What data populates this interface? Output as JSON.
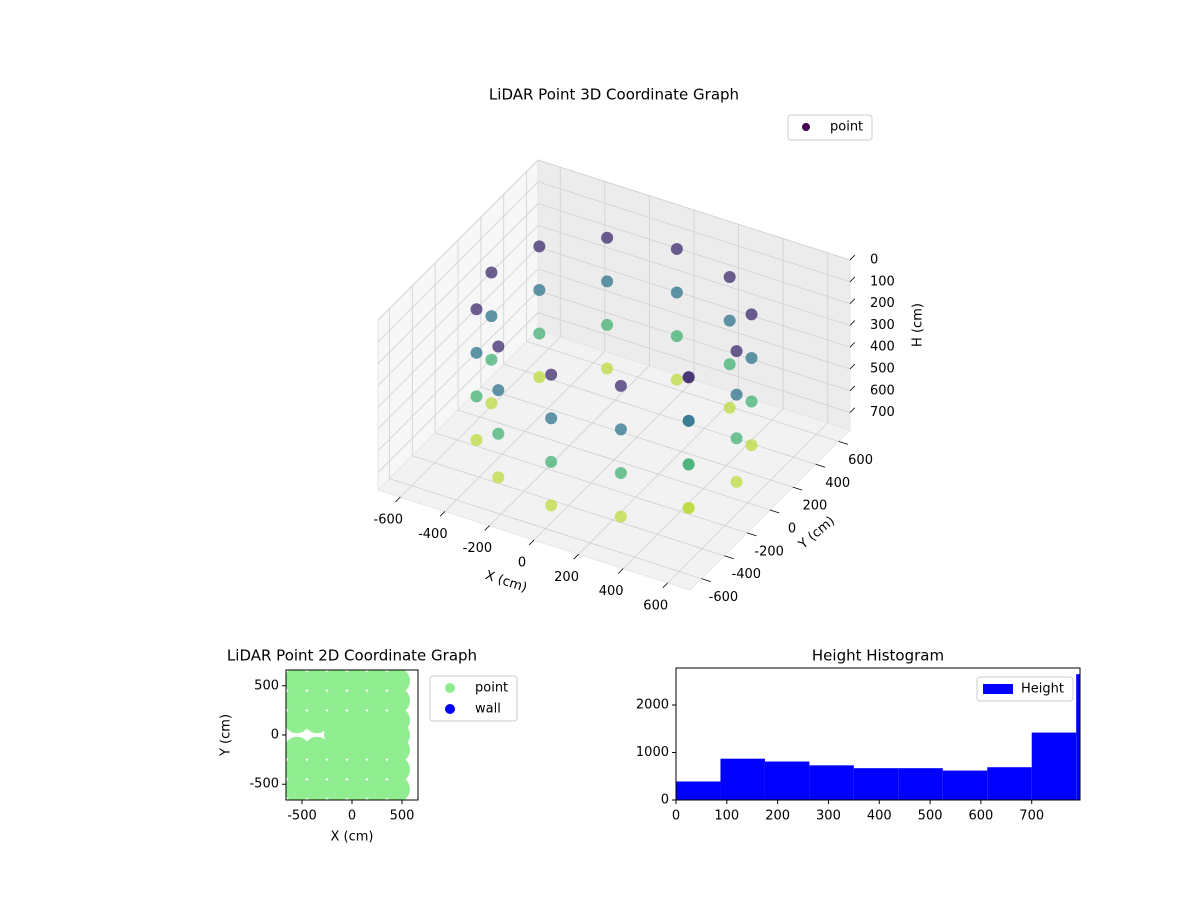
{
  "chart_data": [
    {
      "type": "scatter3d",
      "title": "LiDAR Point 3D Coordinate Graph",
      "xlabel": "X (cm)",
      "ylabel": "Y (cm)",
      "zlabel": "H (cm)",
      "series": [
        {
          "name": "point",
          "colormap": "viridis",
          "x": [
            -275,
            0,
            275,
            -476,
            476,
            -550,
            -275,
            0,
            275,
            -476,
            476,
            -550,
            -275,
            0,
            275,
            -476,
            476,
            -550,
            -275,
            0,
            275,
            -476,
            476,
            -550,
            550,
            476,
            -476,
            -275,
            0,
            275,
            476,
            550,
            476,
            -476,
            -275,
            0,
            275,
            476,
            550,
            476,
            -476,
            -275,
            0,
            275,
            476,
            550,
            476,
            -476,
            -275,
            0,
            275,
            476
          ],
          "y": [
            476,
            550,
            476,
            275,
            275,
            0,
            476,
            550,
            476,
            275,
            275,
            0,
            476,
            550,
            476,
            275,
            275,
            0,
            476,
            550,
            476,
            275,
            275,
            0,
            0,
            -275,
            -275,
            -476,
            -550,
            -476,
            -275,
            0,
            -275,
            -275,
            -476,
            -550,
            -476,
            -275,
            0,
            -275,
            -275,
            -476,
            -550,
            -476,
            -275,
            0,
            -275,
            -275,
            -476,
            -550,
            -476,
            -275
          ],
          "z": [
            100,
            100,
            100,
            100,
            100,
            100,
            300,
            300,
            300,
            300,
            300,
            300,
            500,
            500,
            500,
            500,
            500,
            500,
            700,
            700,
            700,
            700,
            700,
            700,
            100,
            100,
            100,
            100,
            100,
            100,
            100,
            300,
            300,
            300,
            300,
            300,
            300,
            300,
            500,
            500,
            500,
            500,
            500,
            500,
            500,
            700,
            700,
            700,
            700,
            700,
            700,
            700
          ]
        }
      ],
      "xlim": [
        -700,
        700
      ],
      "ylim": [
        -700,
        700
      ],
      "zlim": [
        0,
        780
      ],
      "zinverted": true,
      "xticks": [
        -600,
        -400,
        -200,
        0,
        200,
        400,
        600
      ],
      "yticks": [
        -600,
        -400,
        -200,
        0,
        200,
        400,
        600
      ],
      "zticks": [
        0,
        100,
        200,
        300,
        400,
        500,
        600,
        700
      ],
      "grid": true,
      "legend": "upper right"
    },
    {
      "type": "scatter",
      "title": "LiDAR Point 2D Coordinate Graph",
      "xlabel": "X (cm)",
      "ylabel": "Y (cm)",
      "series": [
        {
          "name": "point",
          "color": "#90ee90",
          "x": [
            -550,
            -350,
            -150,
            50,
            250,
            450,
            -550,
            -350,
            -150,
            50,
            250,
            450,
            -550,
            -350,
            -150,
            50,
            250,
            450,
            -550,
            -350,
            -150,
            50,
            250,
            450,
            -550,
            -350,
            -150,
            50,
            250,
            450,
            -550,
            -350,
            -150,
            50,
            250,
            450,
            -150,
            50,
            250,
            450
          ],
          "y": [
            -550,
            -550,
            -550,
            -550,
            -550,
            -550,
            -350,
            -350,
            -350,
            -350,
            -350,
            -350,
            -150,
            -150,
            -150,
            -150,
            -150,
            -150,
            150,
            150,
            150,
            150,
            150,
            150,
            350,
            350,
            350,
            350,
            350,
            350,
            550,
            550,
            550,
            550,
            550,
            550,
            0,
            0,
            0,
            0
          ]
        },
        {
          "name": "wall",
          "color": "#0000ff",
          "x": [],
          "y": []
        }
      ],
      "xlim": [
        -660,
        660
      ],
      "ylim": [
        -660,
        660
      ],
      "xticks": [
        -500,
        0,
        500
      ],
      "yticks": [
        -500,
        0,
        500
      ],
      "legend": "outside right"
    },
    {
      "type": "histogram",
      "title": "Height Histogram",
      "label": "Height",
      "color": "#0000ff",
      "bins": [
        0,
        87.5,
        175,
        262.5,
        350,
        437.5,
        525,
        612.5,
        700,
        787.5,
        875
      ],
      "counts": [
        390,
        870,
        810,
        730,
        670,
        670,
        620,
        690,
        1420,
        2650
      ],
      "xlim": [
        0,
        795
      ],
      "ylim": [
        0,
        2780
      ],
      "xticks": [
        0,
        100,
        200,
        300,
        400,
        500,
        600,
        700
      ],
      "yticks": [
        0,
        1000,
        2000
      ],
      "legend": "upper right"
    }
  ]
}
